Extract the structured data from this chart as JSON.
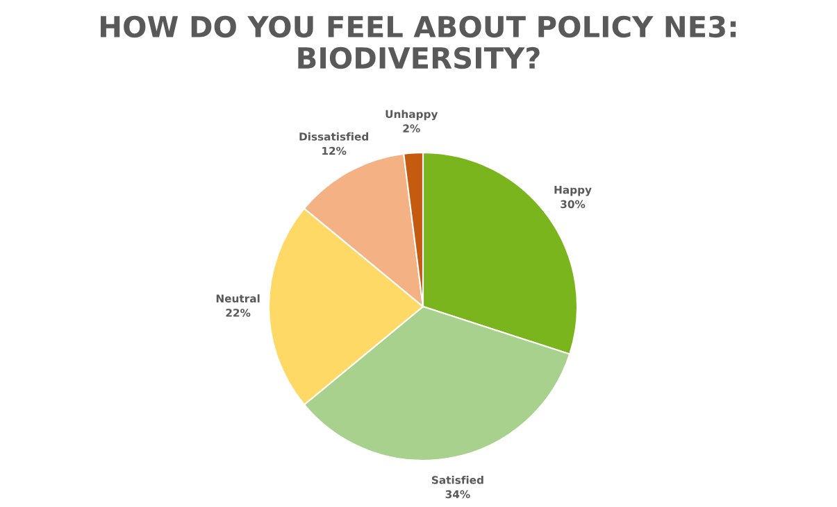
{
  "chart_data": {
    "type": "pie",
    "title": "HOW DO YOU FEEL ABOUT POLICY NE3:\nBIODIVERSITY?",
    "categories": [
      "Happy",
      "Satisfied",
      "Neutral",
      "Dissatisfied",
      "Unhappy"
    ],
    "values": [
      30,
      34,
      22,
      12,
      2
    ],
    "colors": [
      "#7ab51d",
      "#a9d18e",
      "#ffd966",
      "#f4b183",
      "#c55a11"
    ],
    "value_labels": [
      "30%",
      "34%",
      "22%",
      "12%",
      "2%"
    ],
    "legend": false
  }
}
